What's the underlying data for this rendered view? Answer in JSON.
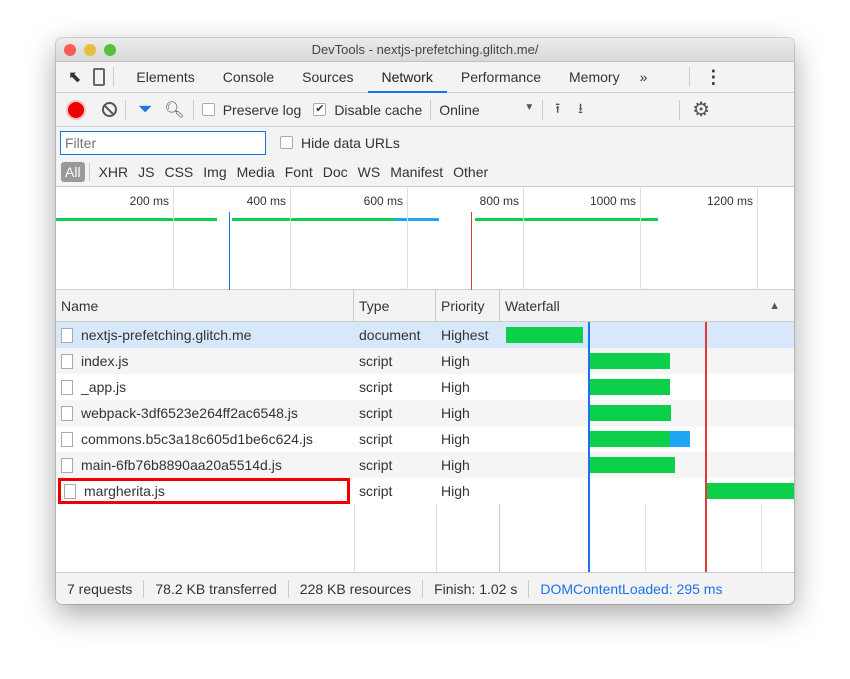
{
  "window": {
    "title": "DevTools - nextjs-prefetching.glitch.me/"
  },
  "tabs": [
    {
      "label": "Elements"
    },
    {
      "label": "Console"
    },
    {
      "label": "Sources"
    },
    {
      "label": "Network",
      "active": true
    },
    {
      "label": "Performance"
    },
    {
      "label": "Memory"
    }
  ],
  "tabs_more": "»",
  "toolbar": {
    "preserve_log": "Preserve log",
    "preserve_log_checked": false,
    "disable_cache": "Disable cache",
    "disable_cache_checked": true,
    "throttling": "Online"
  },
  "filter": {
    "placeholder": "Filter",
    "hide_data_urls": "Hide data URLs"
  },
  "types": [
    "All",
    "XHR",
    "JS",
    "CSS",
    "Img",
    "Media",
    "Font",
    "Doc",
    "WS",
    "Manifest",
    "Other"
  ],
  "overview": {
    "ticks": [
      "200 ms",
      "400 ms",
      "600 ms",
      "800 ms",
      "1000 ms",
      "1200 ms"
    ]
  },
  "columns": {
    "name": "Name",
    "type": "Type",
    "priority": "Priority",
    "waterfall": "Waterfall"
  },
  "requests": [
    {
      "name": "nextjs-prefetching.glitch.me",
      "type": "document",
      "priority": "Highest",
      "selected": true
    },
    {
      "name": "index.js",
      "type": "script",
      "priority": "High"
    },
    {
      "name": "_app.js",
      "type": "script",
      "priority": "High"
    },
    {
      "name": "webpack-3df6523e264ff2ac6548.js",
      "type": "script",
      "priority": "High"
    },
    {
      "name": "commons.b5c3a18c605d1be6c624.js",
      "type": "script",
      "priority": "High"
    },
    {
      "name": "main-6fb76b8890aa20a5514d.js",
      "type": "script",
      "priority": "High"
    },
    {
      "name": "margherita.js",
      "type": "script",
      "priority": "High",
      "highlighted": true
    }
  ],
  "status": {
    "requests": "7 requests",
    "transferred": "78.2 KB transferred",
    "resources": "228 KB resources",
    "finish": "Finish: 1.02 s",
    "dcl": "DOMContentLoaded: 295 ms"
  },
  "colors": {
    "accent": "#1a73e8",
    "bar_green": "#0ccf4a",
    "bar_blue": "#1ea7f5",
    "load_line": "#e53935",
    "dcl_line": "#1a73e8",
    "highlight": "#e00000"
  }
}
